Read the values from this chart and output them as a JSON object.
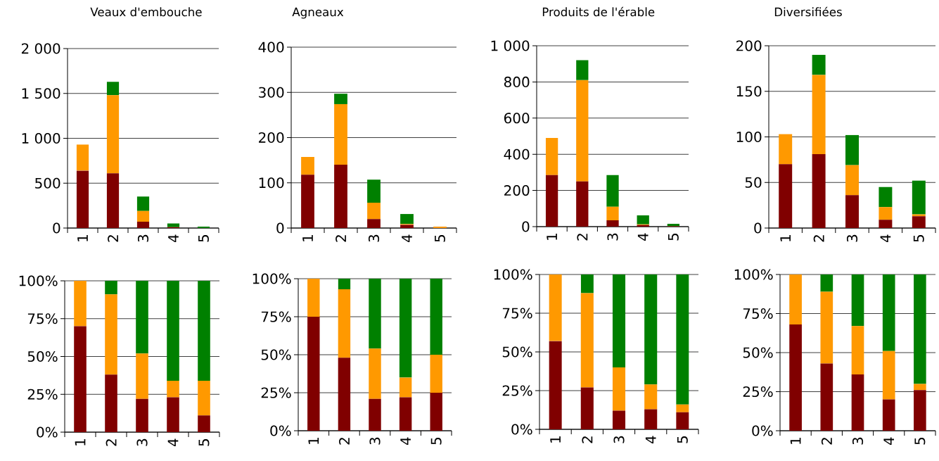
{
  "chart_data": [
    {
      "type": "bar",
      "title": "Veaux d'embouche",
      "categories": [
        "1",
        "2",
        "3",
        "4",
        "5"
      ],
      "stacked": true,
      "grid": "y",
      "ylim": [
        0,
        2000
      ],
      "yticks": [
        0,
        500,
        {
          "value": 1000,
          "label": "1 000"
        },
        {
          "value": 1500,
          "label": "1 500"
        },
        {
          "value": 2000,
          "label": "2 000"
        }
      ],
      "series": [
        {
          "color": "#800000",
          "values": [
            640,
            610,
            70,
            10,
            0
          ]
        },
        {
          "color": "#ff9900",
          "values": [
            290,
            870,
            120,
            0,
            0
          ]
        },
        {
          "color": "#008000",
          "values": [
            0,
            150,
            160,
            40,
            15
          ]
        }
      ]
    },
    {
      "type": "bar",
      "title": "Agneaux",
      "categories": [
        "1",
        "2",
        "3",
        "4",
        "5"
      ],
      "stacked": true,
      "grid": "y",
      "ylim": [
        0,
        400
      ],
      "yticks": [
        0,
        100,
        200,
        300,
        400
      ],
      "series": [
        {
          "color": "#800000",
          "values": [
            118,
            140,
            20,
            7,
            0
          ]
        },
        {
          "color": "#ff9900",
          "values": [
            39,
            134,
            36,
            2,
            3
          ]
        },
        {
          "color": "#008000",
          "values": [
            0,
            23,
            51,
            22,
            0
          ]
        }
      ]
    },
    {
      "type": "bar",
      "title": "Produits de l'érable",
      "categories": [
        "1",
        "2",
        "3",
        "4",
        "5"
      ],
      "stacked": true,
      "grid": "y",
      "ylim": [
        0,
        1000
      ],
      "yticks": [
        0,
        200,
        400,
        600,
        800,
        {
          "value": 1000,
          "label": "1 000"
        }
      ],
      "series": [
        {
          "color": "#800000",
          "values": [
            285,
            250,
            35,
            9,
            2
          ]
        },
        {
          "color": "#ff9900",
          "values": [
            205,
            560,
            75,
            4,
            1
          ]
        },
        {
          "color": "#008000",
          "values": [
            0,
            110,
            175,
            49,
            13
          ]
        }
      ]
    },
    {
      "type": "bar",
      "title": "Diversifiées",
      "categories": [
        "1",
        "2",
        "3",
        "4",
        "5"
      ],
      "stacked": true,
      "grid": "y",
      "ylim": [
        0,
        200
      ],
      "yticks": [
        0,
        50,
        100,
        150,
        200
      ],
      "series": [
        {
          "color": "#800000",
          "values": [
            70,
            81,
            36,
            9,
            13
          ]
        },
        {
          "color": "#ff9900",
          "values": [
            33,
            87,
            33,
            14,
            2
          ]
        },
        {
          "color": "#008000",
          "values": [
            0,
            22,
            33,
            22,
            37
          ]
        }
      ]
    },
    {
      "type": "bar",
      "categories": [
        "1",
        "2",
        "3",
        "4",
        "5"
      ],
      "stacked": true,
      "grid": "y",
      "ylim": [
        0,
        100
      ],
      "yticks": [
        {
          "value": 0,
          "label": "0%"
        },
        {
          "value": 25,
          "label": "25%"
        },
        {
          "value": 50,
          "label": "50%"
        },
        {
          "value": 75,
          "label": "75%"
        },
        {
          "value": 100,
          "label": "100%"
        }
      ],
      "series": [
        {
          "color": "#800000",
          "values": [
            70,
            38,
            22,
            23,
            11
          ]
        },
        {
          "color": "#ff9900",
          "values": [
            30,
            53,
            30,
            11,
            23
          ]
        },
        {
          "color": "#008000",
          "values": [
            0,
            9,
            48,
            66,
            66
          ]
        }
      ]
    },
    {
      "type": "bar",
      "categories": [
        "1",
        "2",
        "3",
        "4",
        "5"
      ],
      "stacked": true,
      "grid": "y",
      "ylim": [
        0,
        100
      ],
      "yticks": [
        {
          "value": 0,
          "label": "0%"
        },
        {
          "value": 25,
          "label": "25%"
        },
        {
          "value": 50,
          "label": "50%"
        },
        {
          "value": 75,
          "label": "75%"
        },
        {
          "value": 100,
          "label": "100%"
        }
      ],
      "series": [
        {
          "color": "#800000",
          "values": [
            75,
            48,
            21,
            22,
            25
          ]
        },
        {
          "color": "#ff9900",
          "values": [
            25,
            45,
            33,
            13,
            25
          ]
        },
        {
          "color": "#008000",
          "values": [
            0,
            7,
            46,
            65,
            50
          ]
        }
      ]
    },
    {
      "type": "bar",
      "categories": [
        "1",
        "2",
        "3",
        "4",
        "5"
      ],
      "stacked": true,
      "grid": "y",
      "ylim": [
        0,
        100
      ],
      "yticks": [
        {
          "value": 0,
          "label": "0%"
        },
        {
          "value": 25,
          "label": "25%"
        },
        {
          "value": 50,
          "label": "50%"
        },
        {
          "value": 75,
          "label": "75%"
        },
        {
          "value": 100,
          "label": "100%"
        }
      ],
      "series": [
        {
          "color": "#800000",
          "values": [
            57,
            27,
            12,
            13,
            11
          ]
        },
        {
          "color": "#ff9900",
          "values": [
            43,
            61,
            28,
            16,
            5
          ]
        },
        {
          "color": "#008000",
          "values": [
            0,
            12,
            60,
            71,
            84
          ]
        }
      ]
    },
    {
      "type": "bar",
      "categories": [
        "1",
        "2",
        "3",
        "4",
        "5"
      ],
      "stacked": true,
      "grid": "y",
      "ylim": [
        0,
        100
      ],
      "yticks": [
        {
          "value": 0,
          "label": "0%"
        },
        {
          "value": 25,
          "label": "25%"
        },
        {
          "value": 50,
          "label": "50%"
        },
        {
          "value": 75,
          "label": "75%"
        },
        {
          "value": 100,
          "label": "100%"
        }
      ],
      "series": [
        {
          "color": "#800000",
          "values": [
            68,
            43,
            36,
            20,
            26
          ]
        },
        {
          "color": "#ff9900",
          "values": [
            32,
            46,
            31,
            31,
            4
          ]
        },
        {
          "color": "#008000",
          "values": [
            0,
            11,
            33,
            49,
            70
          ]
        }
      ]
    }
  ]
}
